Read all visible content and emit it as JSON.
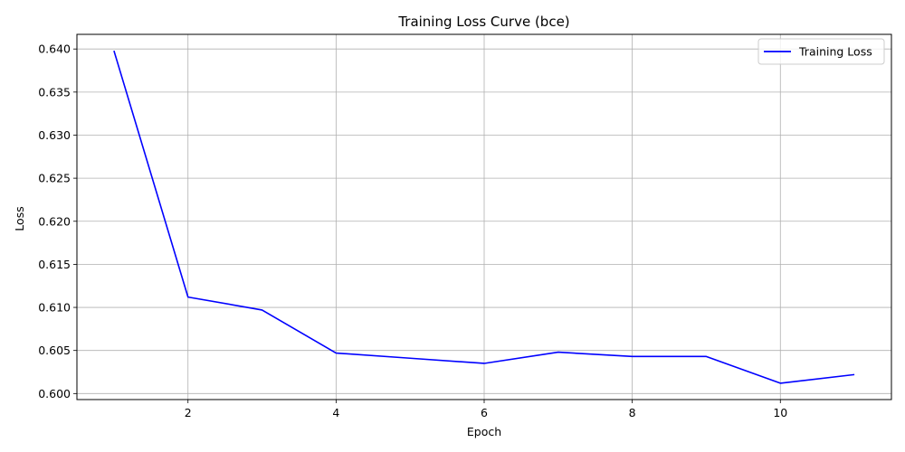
{
  "chart_data": {
    "type": "line",
    "title": "Training Loss Curve (bce)",
    "xlabel": "Epoch",
    "ylabel": "Loss",
    "x": [
      1,
      2,
      3,
      4,
      5,
      6,
      7,
      8,
      9,
      10,
      11
    ],
    "series": [
      {
        "name": "Training Loss",
        "color": "#0000ff",
        "values": [
          0.6398,
          0.6112,
          0.6097,
          0.6047,
          0.6041,
          0.6035,
          0.6048,
          0.6043,
          0.6043,
          0.6012,
          0.6022
        ]
      }
    ],
    "xlim": [
      0.5,
      11.5
    ],
    "ylim": [
      0.5993,
      0.6417
    ],
    "xticks": [
      2,
      4,
      6,
      8,
      10
    ],
    "yticks": [
      0.6,
      0.605,
      0.61,
      0.615,
      0.62,
      0.625,
      0.63,
      0.635,
      0.64
    ],
    "xtick_labels": [
      "2",
      "4",
      "6",
      "8",
      "10"
    ],
    "ytick_labels": [
      "0.600",
      "0.605",
      "0.610",
      "0.615",
      "0.620",
      "0.625",
      "0.630",
      "0.635",
      "0.640"
    ],
    "grid": true,
    "legend_position": "upper-right"
  }
}
